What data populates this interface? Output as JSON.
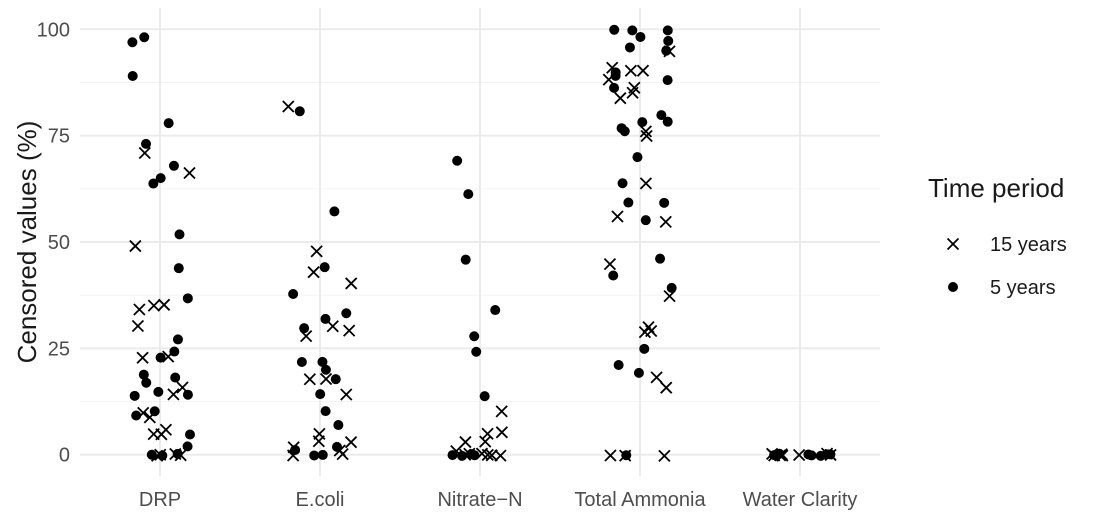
{
  "chart_data": {
    "type": "scatter",
    "title": "",
    "xlabel": "",
    "ylabel": "Censored values (%)",
    "categories": [
      "DRP",
      "E.coli",
      "Nitrate−N",
      "Total Ammonia",
      "Water Clarity"
    ],
    "ylim": [
      -5,
      105
    ],
    "yticks": [
      0,
      25,
      50,
      75,
      100
    ],
    "ytick_labels": [
      "0",
      "25",
      "50",
      "75",
      "100"
    ],
    "grid": true,
    "legend": {
      "title": "Time period",
      "position": "right"
    },
    "series": [
      {
        "name": "15 years",
        "marker": "x",
        "points": [
          {
            "category": "DRP",
            "y": 0
          },
          {
            "category": "DRP",
            "y": 0
          },
          {
            "category": "DRP",
            "y": 0
          },
          {
            "category": "DRP",
            "y": 0
          },
          {
            "category": "DRP",
            "y": 5
          },
          {
            "category": "DRP",
            "y": 6
          },
          {
            "category": "DRP",
            "y": 5
          },
          {
            "category": "DRP",
            "y": 9
          },
          {
            "category": "DRP",
            "y": 10
          },
          {
            "category": "DRP",
            "y": 14
          },
          {
            "category": "DRP",
            "y": 16
          },
          {
            "category": "DRP",
            "y": 23
          },
          {
            "category": "DRP",
            "y": 23
          },
          {
            "category": "DRP",
            "y": 30
          },
          {
            "category": "DRP",
            "y": 34
          },
          {
            "category": "DRP",
            "y": 35
          },
          {
            "category": "DRP",
            "y": 35
          },
          {
            "category": "DRP",
            "y": 49
          },
          {
            "category": "DRP",
            "y": 66
          },
          {
            "category": "DRP",
            "y": 71
          },
          {
            "category": "E.coli",
            "y": 0
          },
          {
            "category": "E.coli",
            "y": 0
          },
          {
            "category": "E.coli",
            "y": 1
          },
          {
            "category": "E.coli",
            "y": 2
          },
          {
            "category": "E.coli",
            "y": 3
          },
          {
            "category": "E.coli",
            "y": 3
          },
          {
            "category": "E.coli",
            "y": 5
          },
          {
            "category": "E.coli",
            "y": 14
          },
          {
            "category": "E.coli",
            "y": 18
          },
          {
            "category": "E.coli",
            "y": 18
          },
          {
            "category": "E.coli",
            "y": 28
          },
          {
            "category": "E.coli",
            "y": 29
          },
          {
            "category": "E.coli",
            "y": 30
          },
          {
            "category": "E.coli",
            "y": 40
          },
          {
            "category": "E.coli",
            "y": 43
          },
          {
            "category": "E.coli",
            "y": 48
          },
          {
            "category": "E.coli",
            "y": 82
          },
          {
            "category": "Nitrate−N",
            "y": 0
          },
          {
            "category": "Nitrate−N",
            "y": 0
          },
          {
            "category": "Nitrate−N",
            "y": 0
          },
          {
            "category": "Nitrate−N",
            "y": 0
          },
          {
            "category": "Nitrate−N",
            "y": 0
          },
          {
            "category": "Nitrate−N",
            "y": 0
          },
          {
            "category": "Nitrate−N",
            "y": 1
          },
          {
            "category": "Nitrate−N",
            "y": 3
          },
          {
            "category": "Nitrate−N",
            "y": 3
          },
          {
            "category": "Nitrate−N",
            "y": 5
          },
          {
            "category": "Nitrate−N",
            "y": 5
          },
          {
            "category": "Nitrate−N",
            "y": 10
          },
          {
            "category": "Total Ammonia",
            "y": 0
          },
          {
            "category": "Total Ammonia",
            "y": 0
          },
          {
            "category": "Total Ammonia",
            "y": 0
          },
          {
            "category": "Total Ammonia",
            "y": 16
          },
          {
            "category": "Total Ammonia",
            "y": 18
          },
          {
            "category": "Total Ammonia",
            "y": 29
          },
          {
            "category": "Total Ammonia",
            "y": 29
          },
          {
            "category": "Total Ammonia",
            "y": 30
          },
          {
            "category": "Total Ammonia",
            "y": 37
          },
          {
            "category": "Total Ammonia",
            "y": 45
          },
          {
            "category": "Total Ammonia",
            "y": 55
          },
          {
            "category": "Total Ammonia",
            "y": 56
          },
          {
            "category": "Total Ammonia",
            "y": 64
          },
          {
            "category": "Total Ammonia",
            "y": 75
          },
          {
            "category": "Total Ammonia",
            "y": 76
          },
          {
            "category": "Total Ammonia",
            "y": 84
          },
          {
            "category": "Total Ammonia",
            "y": 85
          },
          {
            "category": "Total Ammonia",
            "y": 86
          },
          {
            "category": "Total Ammonia",
            "y": 88
          },
          {
            "category": "Total Ammonia",
            "y": 90
          },
          {
            "category": "Total Ammonia",
            "y": 90
          },
          {
            "category": "Total Ammonia",
            "y": 91
          },
          {
            "category": "Total Ammonia",
            "y": 95
          },
          {
            "category": "Water Clarity",
            "y": 0
          },
          {
            "category": "Water Clarity",
            "y": 0
          },
          {
            "category": "Water Clarity",
            "y": 0
          },
          {
            "category": "Water Clarity",
            "y": 0
          },
          {
            "category": "Water Clarity",
            "y": 0
          },
          {
            "category": "Water Clarity",
            "y": 0
          },
          {
            "category": "Water Clarity",
            "y": 0
          },
          {
            "category": "Water Clarity",
            "y": 0
          }
        ]
      },
      {
        "name": "5 years",
        "marker": "dot",
        "points": [
          {
            "category": "DRP",
            "y": 0
          },
          {
            "category": "DRP",
            "y": 0
          },
          {
            "category": "DRP",
            "y": 0
          },
          {
            "category": "DRP",
            "y": 2
          },
          {
            "category": "DRP",
            "y": 5
          },
          {
            "category": "DRP",
            "y": 9
          },
          {
            "category": "DRP",
            "y": 10
          },
          {
            "category": "DRP",
            "y": 14
          },
          {
            "category": "DRP",
            "y": 14
          },
          {
            "category": "DRP",
            "y": 15
          },
          {
            "category": "DRP",
            "y": 17
          },
          {
            "category": "DRP",
            "y": 18
          },
          {
            "category": "DRP",
            "y": 19
          },
          {
            "category": "DRP",
            "y": 23
          },
          {
            "category": "DRP",
            "y": 24
          },
          {
            "category": "DRP",
            "y": 27
          },
          {
            "category": "DRP",
            "y": 37
          },
          {
            "category": "DRP",
            "y": 44
          },
          {
            "category": "DRP",
            "y": 52
          },
          {
            "category": "DRP",
            "y": 64
          },
          {
            "category": "DRP",
            "y": 65
          },
          {
            "category": "DRP",
            "y": 68
          },
          {
            "category": "DRP",
            "y": 73
          },
          {
            "category": "DRP",
            "y": 78
          },
          {
            "category": "DRP",
            "y": 89
          },
          {
            "category": "DRP",
            "y": 97
          },
          {
            "category": "DRP",
            "y": 98
          },
          {
            "category": "E.coli",
            "y": 0
          },
          {
            "category": "E.coli",
            "y": 0
          },
          {
            "category": "E.coli",
            "y": 1
          },
          {
            "category": "E.coli",
            "y": 2
          },
          {
            "category": "E.coli",
            "y": 7
          },
          {
            "category": "E.coli",
            "y": 10
          },
          {
            "category": "E.coli",
            "y": 14
          },
          {
            "category": "E.coli",
            "y": 18
          },
          {
            "category": "E.coli",
            "y": 20
          },
          {
            "category": "E.coli",
            "y": 22
          },
          {
            "category": "E.coli",
            "y": 22
          },
          {
            "category": "E.coli",
            "y": 30
          },
          {
            "category": "E.coli",
            "y": 32
          },
          {
            "category": "E.coli",
            "y": 33
          },
          {
            "category": "E.coli",
            "y": 38
          },
          {
            "category": "E.coli",
            "y": 44
          },
          {
            "category": "E.coli",
            "y": 57
          },
          {
            "category": "E.coli",
            "y": 81
          },
          {
            "category": "Nitrate−N",
            "y": 0
          },
          {
            "category": "Nitrate−N",
            "y": 0
          },
          {
            "category": "Nitrate−N",
            "y": 0
          },
          {
            "category": "Nitrate−N",
            "y": 0
          },
          {
            "category": "Nitrate−N",
            "y": 14
          },
          {
            "category": "Nitrate−N",
            "y": 24
          },
          {
            "category": "Nitrate−N",
            "y": 28
          },
          {
            "category": "Nitrate−N",
            "y": 34
          },
          {
            "category": "Nitrate−N",
            "y": 46
          },
          {
            "category": "Nitrate−N",
            "y": 61
          },
          {
            "category": "Nitrate−N",
            "y": 69
          },
          {
            "category": "Total Ammonia",
            "y": 0
          },
          {
            "category": "Total Ammonia",
            "y": 19
          },
          {
            "category": "Total Ammonia",
            "y": 21
          },
          {
            "category": "Total Ammonia",
            "y": 25
          },
          {
            "category": "Total Ammonia",
            "y": 39
          },
          {
            "category": "Total Ammonia",
            "y": 42
          },
          {
            "category": "Total Ammonia",
            "y": 46
          },
          {
            "category": "Total Ammonia",
            "y": 55
          },
          {
            "category": "Total Ammonia",
            "y": 59
          },
          {
            "category": "Total Ammonia",
            "y": 59
          },
          {
            "category": "Total Ammonia",
            "y": 64
          },
          {
            "category": "Total Ammonia",
            "y": 70
          },
          {
            "category": "Total Ammonia",
            "y": 76
          },
          {
            "category": "Total Ammonia",
            "y": 77
          },
          {
            "category": "Total Ammonia",
            "y": 78
          },
          {
            "category": "Total Ammonia",
            "y": 78
          },
          {
            "category": "Total Ammonia",
            "y": 80
          },
          {
            "category": "Total Ammonia",
            "y": 86
          },
          {
            "category": "Total Ammonia",
            "y": 88
          },
          {
            "category": "Total Ammonia",
            "y": 89
          },
          {
            "category": "Total Ammonia",
            "y": 90
          },
          {
            "category": "Total Ammonia",
            "y": 95
          },
          {
            "category": "Total Ammonia",
            "y": 96
          },
          {
            "category": "Total Ammonia",
            "y": 97
          },
          {
            "category": "Total Ammonia",
            "y": 98
          },
          {
            "category": "Total Ammonia",
            "y": 100
          },
          {
            "category": "Total Ammonia",
            "y": 100
          },
          {
            "category": "Total Ammonia",
            "y": 100
          },
          {
            "category": "Water Clarity",
            "y": 0
          },
          {
            "category": "Water Clarity",
            "y": 0
          },
          {
            "category": "Water Clarity",
            "y": 0
          },
          {
            "category": "Water Clarity",
            "y": 0
          },
          {
            "category": "Water Clarity",
            "y": 0
          },
          {
            "category": "Water Clarity",
            "y": 0
          },
          {
            "category": "Water Clarity",
            "y": 0
          },
          {
            "category": "Water Clarity",
            "y": 0
          }
        ]
      }
    ]
  }
}
